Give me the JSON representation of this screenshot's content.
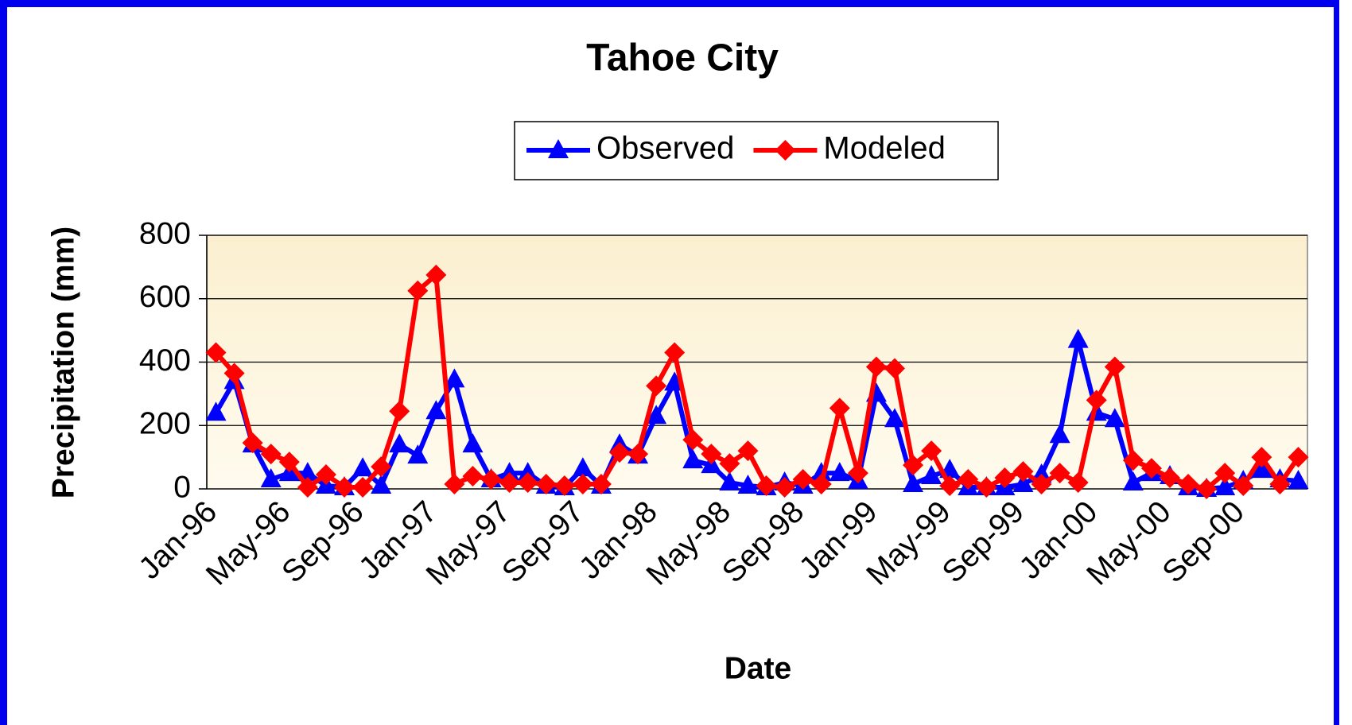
{
  "chart_data": {
    "type": "line",
    "title": "Tahoe City",
    "xlabel": "Date",
    "ylabel": "Precipitation (mm)",
    "categories": [
      "Jan-96",
      null,
      null,
      null,
      "May-96",
      null,
      null,
      null,
      "Sep-96",
      null,
      null,
      null,
      "Jan-97",
      null,
      null,
      null,
      "May-97",
      null,
      null,
      null,
      "Sep-97",
      null,
      null,
      null,
      "Jan-98",
      null,
      null,
      null,
      "May-98",
      null,
      null,
      null,
      "Sep-98",
      null,
      null,
      null,
      "Jan-99",
      null,
      null,
      null,
      "May-99",
      null,
      null,
      null,
      "Sep-99",
      null,
      null,
      null,
      "Jan-00",
      null,
      null,
      null,
      "May-00",
      null,
      null,
      null,
      "Sep-00",
      null,
      null,
      null
    ],
    "series": [
      {
        "name": "Observed",
        "color": "#0000ff",
        "marker": "triangle",
        "values": [
          240,
          340,
          140,
          30,
          50,
          50,
          10,
          5,
          65,
          10,
          140,
          105,
          245,
          345,
          140,
          30,
          50,
          50,
          10,
          5,
          65,
          10,
          140,
          105,
          230,
          335,
          90,
          75,
          20,
          10,
          5,
          20,
          10,
          50,
          50,
          25,
          300,
          220,
          15,
          40,
          60,
          5,
          5,
          5,
          15,
          45,
          170,
          470,
          240,
          220,
          20,
          50,
          40,
          5,
          0,
          5,
          25,
          60,
          30,
          25
        ]
      },
      {
        "name": "Modeled",
        "color": "#ff0000",
        "marker": "diamond",
        "values": [
          430,
          365,
          145,
          110,
          85,
          5,
          45,
          5,
          5,
          70,
          245,
          625,
          675,
          15,
          40,
          30,
          20,
          20,
          15,
          10,
          15,
          15,
          115,
          110,
          325,
          430,
          155,
          110,
          80,
          120,
          10,
          5,
          30,
          15,
          255,
          50,
          385,
          380,
          75,
          120,
          10,
          30,
          5,
          35,
          55,
          15,
          50,
          20,
          280,
          385,
          90,
          65,
          35,
          15,
          0,
          50,
          10,
          100,
          15,
          100
        ]
      }
    ],
    "ylim": [
      0,
      800
    ],
    "yticks": [
      0,
      200,
      400,
      600,
      800
    ],
    "grid": true,
    "legend": "top"
  }
}
